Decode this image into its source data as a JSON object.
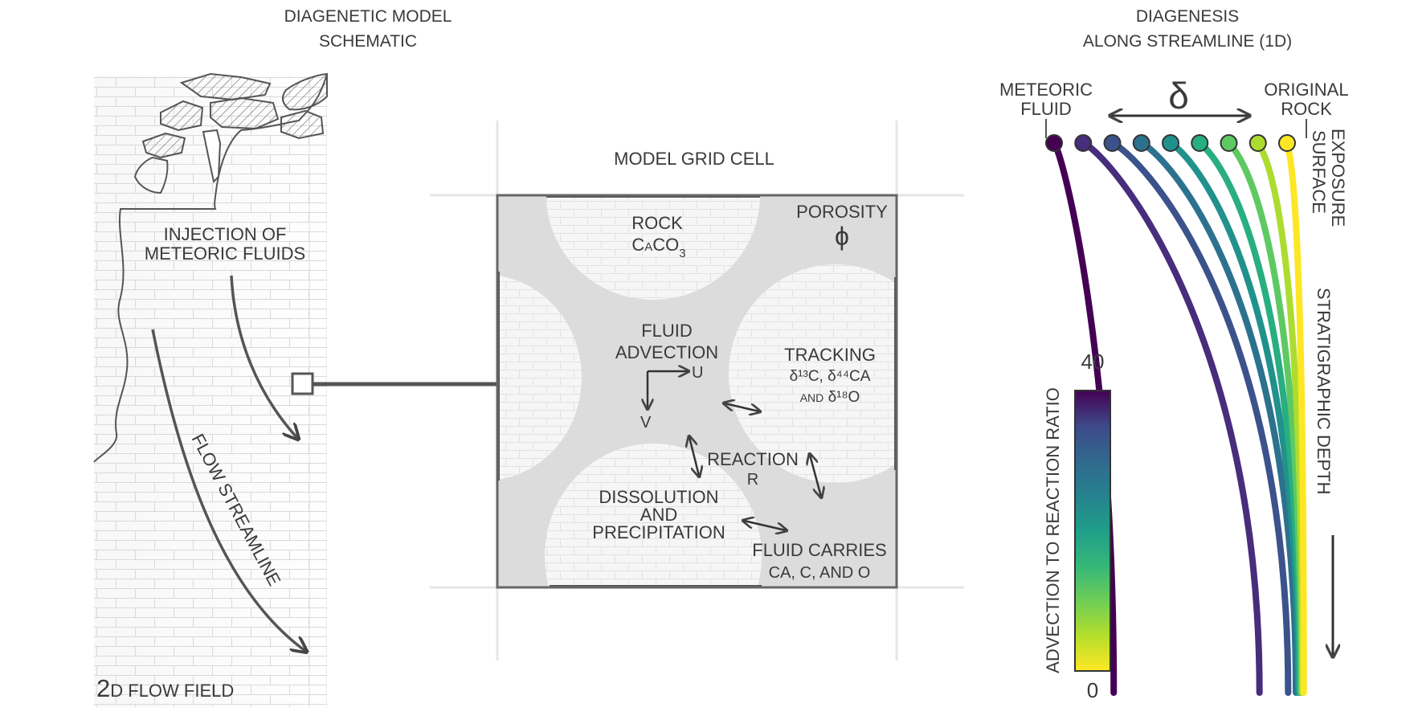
{
  "schematic": {
    "title_line1": "DIAGENETIC MODEL",
    "title_line2": "SCHEMATIC"
  },
  "flowfield": {
    "injection_line1": "INJECTION OF",
    "injection_line2": "METEORIC FLUIDS",
    "streamline_label": "FLOW STREAMLINE",
    "label_big": "2",
    "label_rest": "D FLOW FIELD"
  },
  "cell": {
    "title": "MODEL GRID CELL",
    "rock_line1": "ROCK",
    "rock_formula_ca": "C",
    "rock_formula_a": "A",
    "rock_formula_co": "CO",
    "rock_formula_sub": "3",
    "porosity_label": "POROSITY",
    "porosity_symbol": "ϕ",
    "advection_line1": "FLUID",
    "advection_line2": "ADVECTION",
    "u_label": "U",
    "v_label": "V",
    "tracking_line1": "TRACKING",
    "tracking_line2": "δ¹³C, δ⁴⁴CA",
    "tracking_and": "AND",
    "tracking_line3": "δ¹⁸O",
    "reaction_label": "REACTION",
    "r_label": "R",
    "dissolution_line1": "DISSOLUTION",
    "dissolution_line2": "AND",
    "dissolution_line3": "PRECIPITATION",
    "carries_line1": "FLUID CARRIES",
    "carries_line2": "CA, C, AND O"
  },
  "diagenesis": {
    "title_line1": "DIAGENESIS",
    "title_line2": "ALONG STREAMLINE (1D)",
    "meteoric_line1": "METEORIC",
    "meteoric_line2": "FLUID",
    "original_line1": "ORIGINAL",
    "original_line2": "ROCK",
    "delta_symbol": "δ",
    "exposure_line1": "EXPOSURE",
    "exposure_line2": "SURFACE",
    "depth_label": "STRATIGRAPHIC DEPTH",
    "colorbar_label": "ADVECTION TO REACTION RATIO",
    "colorbar_max": "40",
    "colorbar_min": "0"
  },
  "curves": [
    {
      "ratio": 40,
      "color": "#440154",
      "x_end_frac": 0.26
    },
    {
      "ratio": 34,
      "color": "#472d7b",
      "x_end_frac": 0.82
    },
    {
      "ratio": 28,
      "color": "#3b528b",
      "x_end_frac": 0.93
    },
    {
      "ratio": 22,
      "color": "#2c728e",
      "x_end_frac": 0.96
    },
    {
      "ratio": 16,
      "color": "#21918c",
      "x_end_frac": 0.97
    },
    {
      "ratio": 10,
      "color": "#28ae80",
      "x_end_frac": 0.975
    },
    {
      "ratio": 6,
      "color": "#5ec962",
      "x_end_frac": 0.98
    },
    {
      "ratio": 3,
      "color": "#addc30",
      "x_end_frac": 0.985
    },
    {
      "ratio": 0,
      "color": "#fde725",
      "x_end_frac": 0.99
    }
  ],
  "colors": {
    "line": "#555555",
    "cell_fill": "#dcdcdc",
    "grain_fill": "#f7f7f7",
    "grid": "#e6e6e6"
  }
}
